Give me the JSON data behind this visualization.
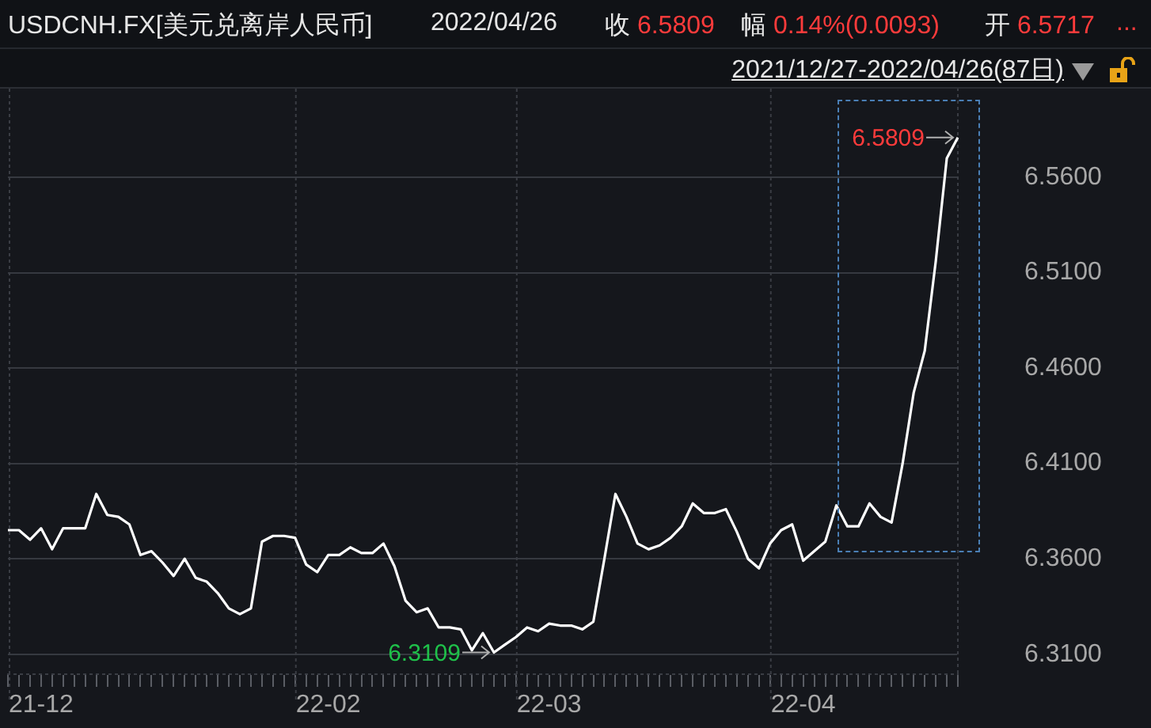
{
  "chart_data": {
    "type": "line",
    "title": "USDCNH.FX[美元兑离岸人民币]",
    "subtitle": "2021/12/27-2022/04/26(87日)",
    "annotations": [
      "2022/04/26",
      "收 6.5809",
      "幅 0.14%(0.0093)",
      "开 6.5717",
      "...",
      "6.5809",
      "6.3109"
    ],
    "categories": [
      null,
      null,
      null,
      "21-12",
      null,
      null,
      null,
      null,
      null,
      null,
      null,
      null,
      null,
      null,
      null,
      null,
      null,
      null,
      null,
      null,
      null,
      null,
      null,
      null,
      null,
      null,
      null,
      null,
      null,
      "22-02",
      null,
      null,
      null,
      null,
      null,
      null,
      null,
      null,
      null,
      null,
      null,
      null,
      null,
      null,
      null,
      null,
      null,
      null,
      null,
      "22-03",
      null,
      null,
      null,
      null,
      null,
      null,
      null,
      null,
      null,
      null,
      null,
      null,
      null,
      null,
      null,
      null,
      null,
      null,
      null,
      null,
      null,
      null,
      "22-04",
      null,
      null,
      null,
      null,
      null,
      null,
      null,
      null,
      null,
      null,
      null,
      null,
      null,
      null
    ],
    "series": [
      {
        "color": "#ffffff",
        "values": [
          6.375,
          6.375,
          6.37,
          6.376,
          6.365,
          6.376,
          6.376,
          6.376,
          6.394,
          6.383,
          6.382,
          6.378,
          6.362,
          6.364,
          6.358,
          6.351,
          6.36,
          6.35,
          6.348,
          6.342,
          6.334,
          6.331,
          6.334,
          6.369,
          6.372,
          6.372,
          6.371,
          6.357,
          6.353,
          6.362,
          6.362,
          6.366,
          6.363,
          6.363,
          6.368,
          6.356,
          6.338,
          6.332,
          6.334,
          6.324,
          6.324,
          6.323,
          6.312,
          6.321,
          6.3109,
          6.315,
          6.319,
          6.324,
          6.322,
          6.326,
          6.325,
          6.325,
          6.323,
          6.327,
          6.36,
          6.394,
          6.382,
          6.368,
          6.365,
          6.367,
          6.371,
          6.377,
          6.389,
          6.384,
          6.384,
          6.386,
          6.374,
          6.36,
          6.355,
          6.368,
          6.375,
          6.378,
          6.359,
          6.364,
          6.369,
          6.388,
          6.377,
          6.377,
          6.389,
          6.382,
          6.379,
          6.41,
          6.447,
          6.469,
          6.516,
          6.57,
          6.5809
        ]
      }
    ],
    "ylim": [
      6.2995,
      6.6065
    ],
    "yticks": [
      {
        "value": 6.31,
        "label": "6.3100"
      },
      {
        "value": 6.36,
        "label": "6.3600"
      },
      {
        "value": 6.41,
        "label": "6.4100"
      },
      {
        "value": 6.46,
        "label": "6.4600"
      },
      {
        "value": 6.51,
        "label": "6.5100"
      },
      {
        "value": 6.56,
        "label": "6.5600"
      }
    ],
    "grid": true,
    "legend": false,
    "marker": "none",
    "line_style": "solid"
  }
}
